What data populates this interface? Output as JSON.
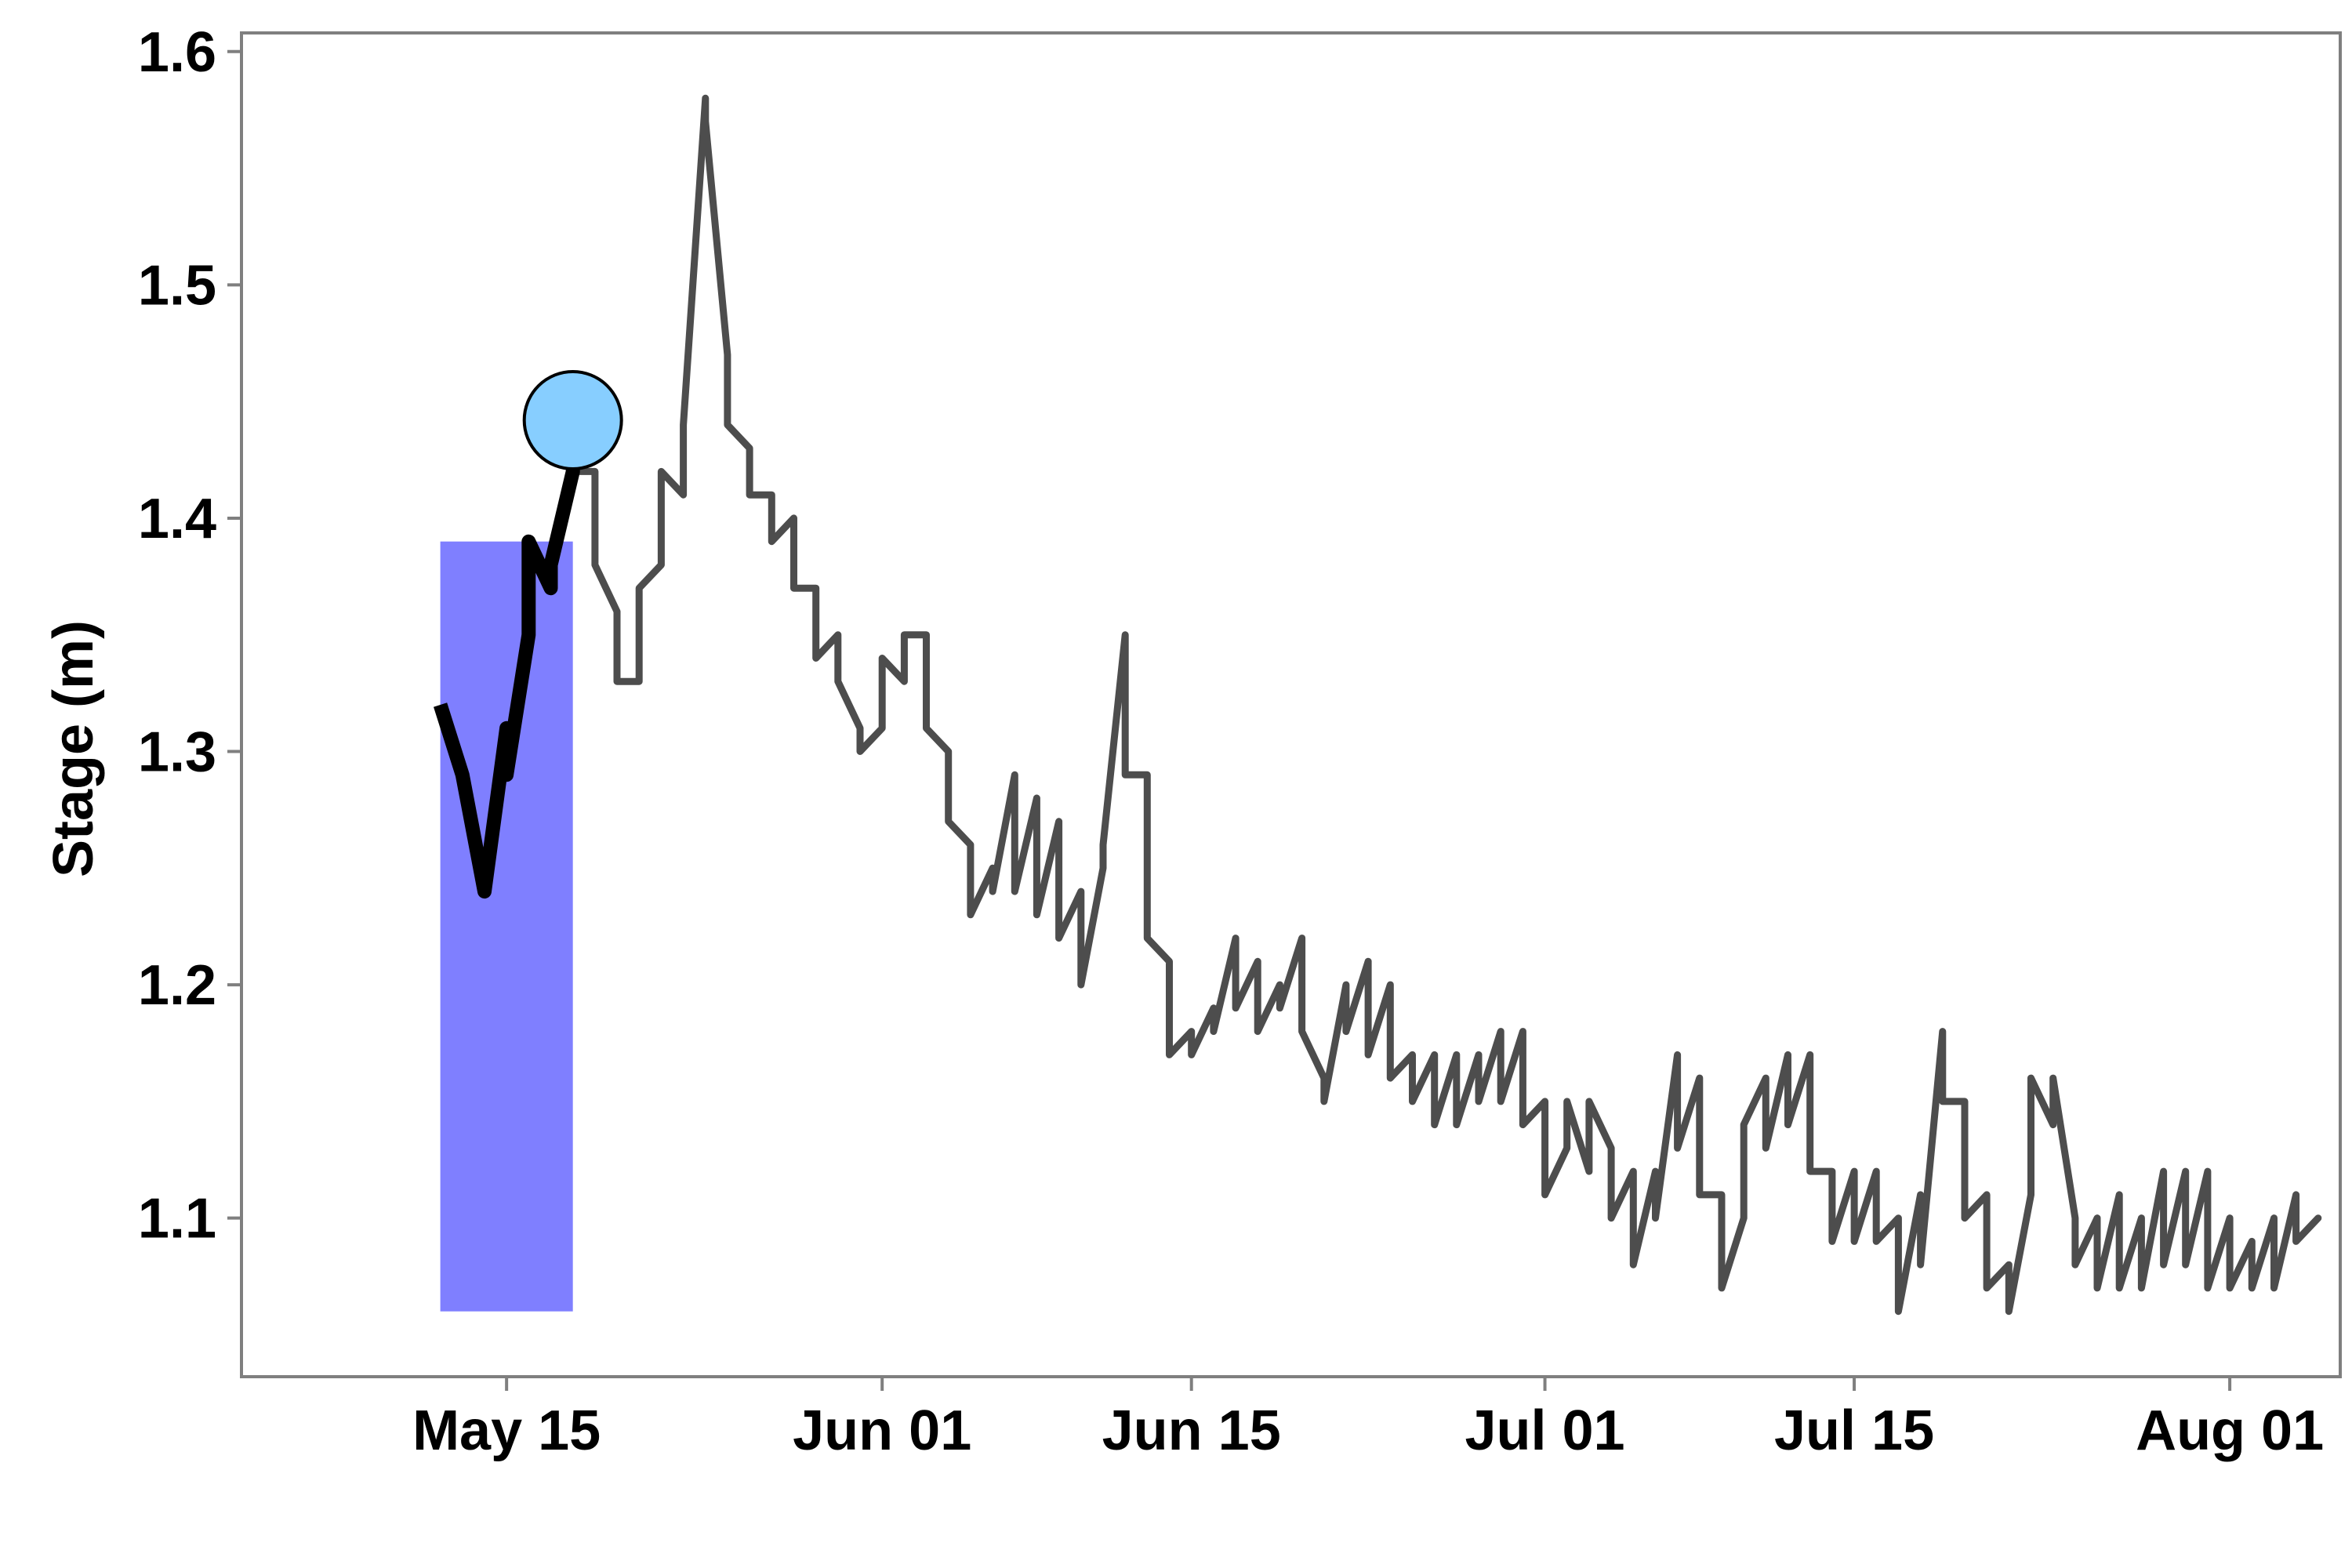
{
  "chart_data": {
    "type": "line",
    "title": "",
    "xlabel": "",
    "ylabel": "Stage (m)",
    "x_axis": {
      "type": "date",
      "range": [
        "2013-05-03",
        "2013-08-06"
      ],
      "ticks": [
        {
          "date": "2013-05-15",
          "label": "May 15"
        },
        {
          "date": "2013-06-01",
          "label": "Jun 01"
        },
        {
          "date": "2013-06-15",
          "label": "Jun 15"
        },
        {
          "date": "2013-07-01",
          "label": "Jul 01"
        },
        {
          "date": "2013-07-15",
          "label": "Jul 15"
        },
        {
          "date": "2013-08-01",
          "label": "Aug 01"
        }
      ]
    },
    "y_axis": {
      "range": [
        1.032,
        1.608
      ],
      "ticks": [
        1.1,
        1.2,
        1.3,
        1.4,
        1.5,
        1.6
      ],
      "tick_labels": [
        "1.1",
        "1.2",
        "1.3",
        "1.4",
        "1.5",
        "1.6"
      ]
    },
    "grid": false,
    "panel_border": true,
    "shaded_region": {
      "x_start": "2013-05-12",
      "x_end": "2013-05-18",
      "y_bottom": 1.06,
      "y_top": 1.39,
      "color": "#7f7fff"
    },
    "series": [
      {
        "role": "full stage record",
        "color": "#4d4d4d",
        "points": [
          [
            "2013-05-18",
            1.42
          ],
          [
            "2013-05-19",
            1.42
          ],
          [
            "2013-05-19",
            1.38
          ],
          [
            "2013-05-20",
            1.36
          ],
          [
            "2013-05-20",
            1.33
          ],
          [
            "2013-05-21",
            1.33
          ],
          [
            "2013-05-21",
            1.37
          ],
          [
            "2013-05-22",
            1.38
          ],
          [
            "2013-05-22",
            1.42
          ],
          [
            "2013-05-23",
            1.41
          ],
          [
            "2013-05-23",
            1.44
          ],
          [
            "2013-05-24",
            1.58
          ],
          [
            "2013-05-24",
            1.57
          ],
          [
            "2013-05-25",
            1.47
          ],
          [
            "2013-05-25",
            1.44
          ],
          [
            "2013-05-26",
            1.43
          ],
          [
            "2013-05-26",
            1.41
          ],
          [
            "2013-05-27",
            1.41
          ],
          [
            "2013-05-27",
            1.39
          ],
          [
            "2013-05-28",
            1.4
          ],
          [
            "2013-05-28",
            1.37
          ],
          [
            "2013-05-29",
            1.37
          ],
          [
            "2013-05-29",
            1.34
          ],
          [
            "2013-05-30",
            1.35
          ],
          [
            "2013-05-30",
            1.33
          ],
          [
            "2013-05-31",
            1.31
          ],
          [
            "2013-05-31",
            1.3
          ],
          [
            "2013-06-01",
            1.31
          ],
          [
            "2013-06-01",
            1.34
          ],
          [
            "2013-06-02",
            1.33
          ],
          [
            "2013-06-02",
            1.35
          ],
          [
            "2013-06-03",
            1.35
          ],
          [
            "2013-06-03",
            1.31
          ],
          [
            "2013-06-04",
            1.3
          ],
          [
            "2013-06-04",
            1.27
          ],
          [
            "2013-06-05",
            1.26
          ],
          [
            "2013-06-05",
            1.23
          ],
          [
            "2013-06-06",
            1.25
          ],
          [
            "2013-06-06",
            1.24
          ],
          [
            "2013-06-07",
            1.29
          ],
          [
            "2013-06-07",
            1.24
          ],
          [
            "2013-06-08",
            1.28
          ],
          [
            "2013-06-08",
            1.23
          ],
          [
            "2013-06-09",
            1.27
          ],
          [
            "2013-06-09",
            1.22
          ],
          [
            "2013-06-10",
            1.24
          ],
          [
            "2013-06-10",
            1.2
          ],
          [
            "2013-06-11",
            1.25
          ],
          [
            "2013-06-11",
            1.26
          ],
          [
            "2013-06-12",
            1.35
          ],
          [
            "2013-06-12",
            1.29
          ],
          [
            "2013-06-13",
            1.29
          ],
          [
            "2013-06-13",
            1.22
          ],
          [
            "2013-06-14",
            1.21
          ],
          [
            "2013-06-14",
            1.17
          ],
          [
            "2013-06-15",
            1.18
          ],
          [
            "2013-06-15",
            1.17
          ],
          [
            "2013-06-16",
            1.19
          ],
          [
            "2013-06-16",
            1.18
          ],
          [
            "2013-06-17",
            1.22
          ],
          [
            "2013-06-17",
            1.19
          ],
          [
            "2013-06-18",
            1.21
          ],
          [
            "2013-06-18",
            1.18
          ],
          [
            "2013-06-19",
            1.2
          ],
          [
            "2013-06-19",
            1.19
          ],
          [
            "2013-06-20",
            1.22
          ],
          [
            "2013-06-20",
            1.18
          ],
          [
            "2013-06-21",
            1.16
          ],
          [
            "2013-06-21",
            1.15
          ],
          [
            "2013-06-22",
            1.2
          ],
          [
            "2013-06-22",
            1.18
          ],
          [
            "2013-06-23",
            1.21
          ],
          [
            "2013-06-23",
            1.17
          ],
          [
            "2013-06-24",
            1.2
          ],
          [
            "2013-06-24",
            1.16
          ],
          [
            "2013-06-25",
            1.17
          ],
          [
            "2013-06-25",
            1.15
          ],
          [
            "2013-06-26",
            1.17
          ],
          [
            "2013-06-26",
            1.14
          ],
          [
            "2013-06-27",
            1.17
          ],
          [
            "2013-06-27",
            1.14
          ],
          [
            "2013-06-28",
            1.17
          ],
          [
            "2013-06-28",
            1.15
          ],
          [
            "2013-06-29",
            1.18
          ],
          [
            "2013-06-29",
            1.15
          ],
          [
            "2013-06-30",
            1.18
          ],
          [
            "2013-06-30",
            1.14
          ],
          [
            "2013-07-01",
            1.15
          ],
          [
            "2013-07-01",
            1.11
          ],
          [
            "2013-07-02",
            1.13
          ],
          [
            "2013-07-02",
            1.15
          ],
          [
            "2013-07-03",
            1.12
          ],
          [
            "2013-07-03",
            1.15
          ],
          [
            "2013-07-04",
            1.13
          ],
          [
            "2013-07-04",
            1.1
          ],
          [
            "2013-07-05",
            1.12
          ],
          [
            "2013-07-05",
            1.08
          ],
          [
            "2013-07-06",
            1.12
          ],
          [
            "2013-07-06",
            1.1
          ],
          [
            "2013-07-07",
            1.17
          ],
          [
            "2013-07-07",
            1.13
          ],
          [
            "2013-07-08",
            1.16
          ],
          [
            "2013-07-08",
            1.11
          ],
          [
            "2013-07-09",
            1.11
          ],
          [
            "2013-07-09",
            1.07
          ],
          [
            "2013-07-10",
            1.1
          ],
          [
            "2013-07-10",
            1.14
          ],
          [
            "2013-07-11",
            1.16
          ],
          [
            "2013-07-11",
            1.13
          ],
          [
            "2013-07-12",
            1.17
          ],
          [
            "2013-07-12",
            1.14
          ],
          [
            "2013-07-13",
            1.17
          ],
          [
            "2013-07-13",
            1.12
          ],
          [
            "2013-07-14",
            1.12
          ],
          [
            "2013-07-14",
            1.09
          ],
          [
            "2013-07-15",
            1.12
          ],
          [
            "2013-07-15",
            1.09
          ],
          [
            "2013-07-16",
            1.12
          ],
          [
            "2013-07-16",
            1.09
          ],
          [
            "2013-07-17",
            1.1
          ],
          [
            "2013-07-17",
            1.06
          ],
          [
            "2013-07-18",
            1.11
          ],
          [
            "2013-07-18",
            1.08
          ],
          [
            "2013-07-19",
            1.18
          ],
          [
            "2013-07-19",
            1.15
          ],
          [
            "2013-07-20",
            1.15
          ],
          [
            "2013-07-20",
            1.1
          ],
          [
            "2013-07-21",
            1.11
          ],
          [
            "2013-07-21",
            1.07
          ],
          [
            "2013-07-22",
            1.08
          ],
          [
            "2013-07-22",
            1.06
          ],
          [
            "2013-07-23",
            1.11
          ],
          [
            "2013-07-23",
            1.16
          ],
          [
            "2013-07-24",
            1.14
          ],
          [
            "2013-07-24",
            1.16
          ],
          [
            "2013-07-25",
            1.1
          ],
          [
            "2013-07-25",
            1.08
          ],
          [
            "2013-07-26",
            1.1
          ],
          [
            "2013-07-26",
            1.07
          ],
          [
            "2013-07-27",
            1.11
          ],
          [
            "2013-07-27",
            1.07
          ],
          [
            "2013-07-28",
            1.1
          ],
          [
            "2013-07-28",
            1.07
          ],
          [
            "2013-07-29",
            1.12
          ],
          [
            "2013-07-29",
            1.08
          ],
          [
            "2013-07-30",
            1.12
          ],
          [
            "2013-07-30",
            1.08
          ],
          [
            "2013-07-31",
            1.12
          ],
          [
            "2013-07-31",
            1.07
          ],
          [
            "2013-08-01",
            1.1
          ],
          [
            "2013-08-01",
            1.07
          ],
          [
            "2013-08-02",
            1.09
          ],
          [
            "2013-08-02",
            1.07
          ],
          [
            "2013-08-03",
            1.1
          ],
          [
            "2013-08-03",
            1.07
          ],
          [
            "2013-08-04",
            1.11
          ],
          [
            "2013-08-04",
            1.09
          ],
          [
            "2013-08-05",
            1.1
          ]
        ]
      },
      {
        "role": "highlighted window",
        "color": "#000000",
        "points": [
          [
            "2013-05-12",
            1.32
          ],
          [
            "2013-05-13",
            1.29
          ],
          [
            "2013-05-14",
            1.24
          ],
          [
            "2013-05-15",
            1.31
          ],
          [
            "2013-05-15",
            1.29
          ],
          [
            "2013-05-16",
            1.35
          ],
          [
            "2013-05-16",
            1.39
          ],
          [
            "2013-05-17",
            1.37
          ],
          [
            "2013-05-17",
            1.38
          ],
          [
            "2013-05-18",
            1.42
          ],
          [
            "2013-05-18",
            1.44
          ]
        ]
      }
    ],
    "marker": {
      "date": "2013-05-18",
      "value": 1.442,
      "fill": "#87ceff",
      "stroke": "#000000"
    }
  }
}
